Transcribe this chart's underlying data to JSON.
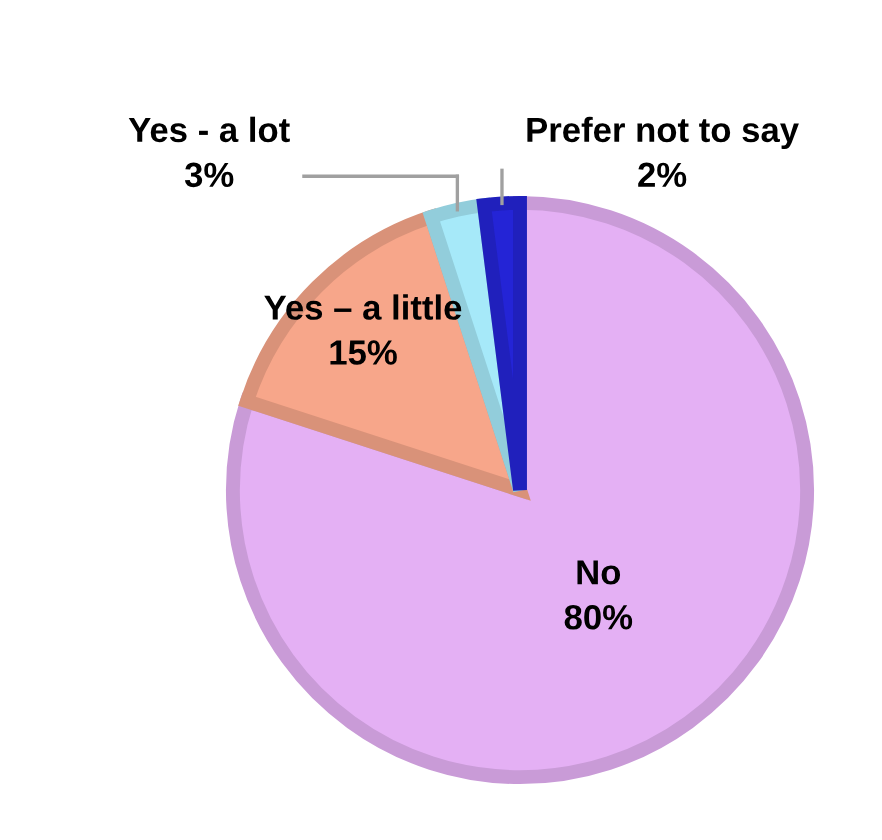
{
  "chart_data": {
    "type": "pie",
    "categories": [
      "No",
      "Yes – a little",
      "Yes - a lot",
      "Prefer not to say"
    ],
    "values": [
      80,
      15,
      3,
      2
    ],
    "colors": [
      "#e4b0f4",
      "#f7a68a",
      "#a6e9f9",
      "#2424d6"
    ],
    "value_labels": [
      "80%",
      "15%",
      "3%",
      "2%"
    ]
  }
}
